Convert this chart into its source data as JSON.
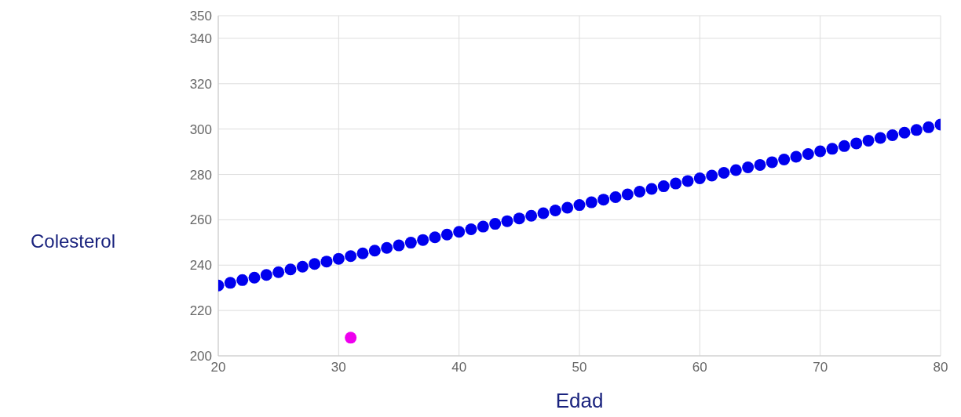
{
  "chart_data": {
    "type": "scatter",
    "xlabel": "Edad",
    "ylabel": "Colesterol",
    "xlim": [
      20,
      80
    ],
    "xticks": [
      20,
      30,
      40,
      50,
      60,
      70,
      80
    ],
    "ylim": [
      200,
      350
    ],
    "yticks": [
      200,
      220,
      240,
      260,
      280,
      300,
      320,
      340,
      350
    ],
    "grid": true,
    "marker": "circle",
    "series": [
      {
        "color": "#0000ee",
        "x": [
          20,
          21,
          22,
          23,
          24,
          25,
          26,
          27,
          28,
          29,
          30,
          31,
          32,
          33,
          34,
          35,
          36,
          37,
          38,
          39,
          40,
          41,
          42,
          43,
          44,
          45,
          46,
          47,
          48,
          49,
          50,
          51,
          52,
          53,
          54,
          55,
          56,
          57,
          58,
          59,
          60,
          61,
          62,
          63,
          64,
          65,
          66,
          67,
          68,
          69,
          70,
          71,
          72,
          73,
          74,
          75,
          76,
          77,
          78,
          79,
          80
        ],
        "values": [
          231,
          232.2,
          233.4,
          234.5,
          235.7,
          236.9,
          238.1,
          239.3,
          240.5,
          241.6,
          242.8,
          244,
          245.2,
          246.4,
          247.6,
          248.7,
          249.9,
          251.1,
          252.3,
          253.5,
          254.7,
          255.8,
          257,
          258.2,
          259.4,
          260.6,
          261.8,
          262.9,
          264.1,
          265.3,
          266.5,
          267.7,
          268.9,
          270,
          271.2,
          272.4,
          273.6,
          274.8,
          276,
          277.1,
          278.3,
          279.5,
          280.7,
          281.9,
          283.1,
          284.2,
          285.4,
          286.6,
          287.8,
          289,
          290.2,
          291.3,
          292.5,
          293.7,
          294.9,
          296.1,
          297.3,
          298.4,
          299.6,
          300.8,
          302
        ]
      },
      {
        "color": "#ee00ee",
        "x": [
          31
        ],
        "values": [
          208
        ]
      }
    ]
  }
}
